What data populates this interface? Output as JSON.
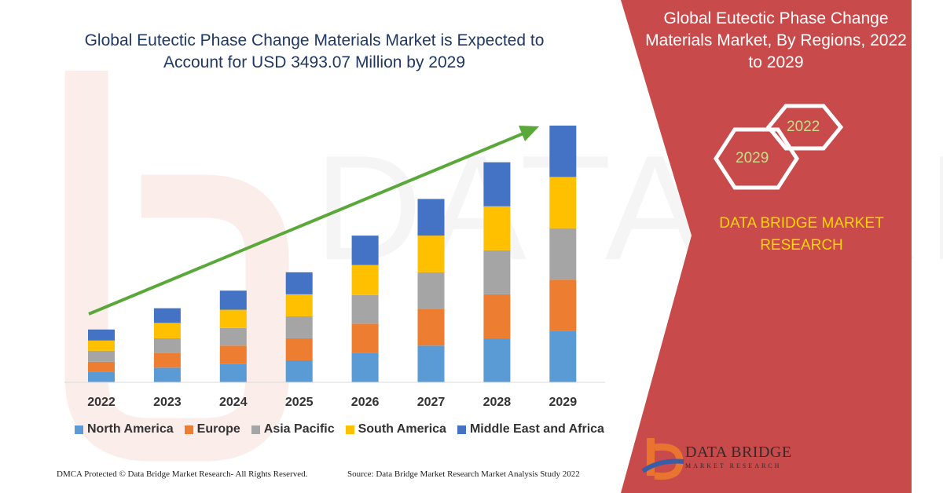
{
  "chart_data": {
    "type": "bar",
    "stacked": true,
    "title": "Global Eutectic Phase Change Materials Market is Expected to Account for USD 3493.07 Million by 2029",
    "categories": [
      "2022",
      "2023",
      "2024",
      "2025",
      "2026",
      "2027",
      "2028",
      "2029"
    ],
    "series": [
      {
        "name": "North America",
        "color": "#5b9bd5",
        "values": [
          14,
          20,
          25,
          30,
          40,
          50,
          60,
          70
        ]
      },
      {
        "name": "Europe",
        "color": "#ed7d31",
        "values": [
          14,
          20,
          25,
          30,
          40,
          50,
          60,
          70
        ]
      },
      {
        "name": "Asia Pacific",
        "color": "#a5a5a5",
        "values": [
          15,
          20,
          24,
          30,
          39,
          50,
          60,
          70
        ]
      },
      {
        "name": "South America",
        "color": "#ffc000",
        "values": [
          14,
          21,
          25,
          30,
          41,
          50,
          60,
          70
        ]
      },
      {
        "name": "Middle East and Africa",
        "color": "#4472c4",
        "values": [
          15,
          20,
          26,
          30,
          40,
          50,
          60,
          70
        ]
      }
    ],
    "trend_arrow": true,
    "legend_position": "bottom",
    "grid": false
  },
  "panel": {
    "title": "Global Eutectic Phase Change Materials Market, By Regions, 2022 to 2029",
    "hex_year_small": "2022",
    "hex_year_large": "2029",
    "brand": "DATA BRIDGE MARKET RESEARCH",
    "background_color": "#c94a4a"
  },
  "footer": {
    "left": "DMCA Protected © Data Bridge Market Research- All Rights Reserved.",
    "right": "Source: Data Bridge Market Research Market Analysis Study 2022"
  },
  "logo": {
    "name": "DATA BRIDGE",
    "subtitle": "MARKET RESEARCH"
  }
}
